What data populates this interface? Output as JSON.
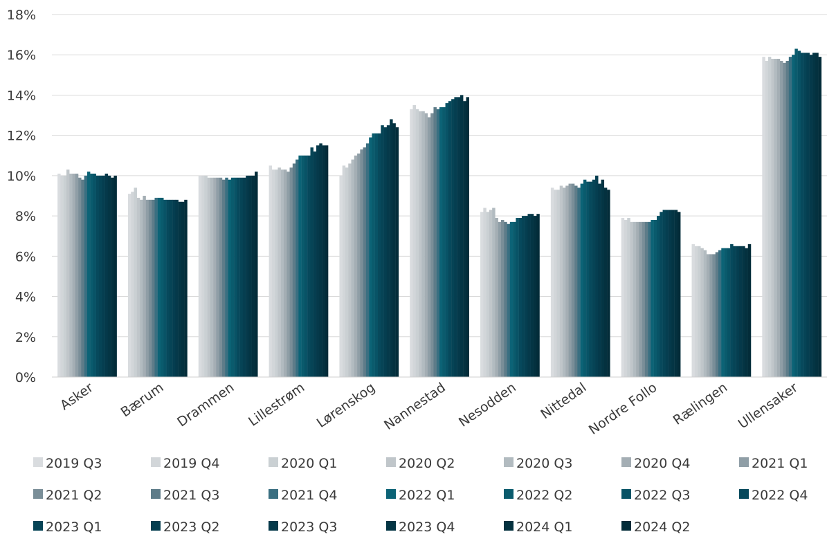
{
  "chart_data": {
    "type": "bar",
    "title": "",
    "xlabel": "",
    "ylabel": "",
    "ylim": [
      0,
      18
    ],
    "yticks": [
      "0%",
      "2%",
      "4%",
      "6%",
      "8%",
      "10%",
      "12%",
      "14%",
      "16%",
      "18%"
    ],
    "y_tick_values": [
      0,
      2,
      4,
      6,
      8,
      10,
      12,
      14,
      16,
      18
    ],
    "grid": true,
    "legend_position": "bottom",
    "categories": [
      "Asker",
      "Bærum",
      "Drammen",
      "Lillestrøm",
      "Lørenskog",
      "Nannestad",
      "Nesodden",
      "Nittedal",
      "Nordre Follo",
      "Rælingen",
      "Ullensaker"
    ],
    "series": [
      {
        "name": "2019 Q3",
        "color": "#d9dcdf",
        "values": [
          10.1,
          9.1,
          10.0,
          10.5,
          10.0,
          13.3,
          8.2,
          9.4,
          7.9,
          6.6,
          15.9
        ]
      },
      {
        "name": "2019 Q4",
        "color": "#d2d6d9",
        "values": [
          10.0,
          9.2,
          10.0,
          10.3,
          10.5,
          13.5,
          8.4,
          9.3,
          7.8,
          6.5,
          15.7
        ]
      },
      {
        "name": "2020 Q1",
        "color": "#cad0d3",
        "values": [
          10.0,
          9.4,
          10.0,
          10.3,
          10.4,
          13.3,
          8.2,
          9.3,
          7.9,
          6.5,
          15.9
        ]
      },
      {
        "name": "2020 Q2",
        "color": "#c0c6ca",
        "values": [
          10.3,
          8.9,
          9.9,
          10.4,
          10.6,
          13.2,
          8.3,
          9.5,
          7.7,
          6.4,
          15.8
        ]
      },
      {
        "name": "2020 Q3",
        "color": "#b2bbc0",
        "values": [
          10.1,
          8.8,
          9.9,
          10.3,
          10.8,
          13.2,
          8.4,
          9.4,
          7.7,
          6.3,
          15.8
        ]
      },
      {
        "name": "2020 Q4",
        "color": "#a4aeb4",
        "values": [
          10.1,
          9.0,
          9.9,
          10.3,
          11.0,
          13.1,
          7.9,
          9.5,
          7.7,
          6.1,
          15.8
        ]
      },
      {
        "name": "2021 Q1",
        "color": "#8f9ea6",
        "values": [
          10.1,
          8.8,
          9.9,
          10.2,
          11.1,
          12.9,
          7.7,
          9.6,
          7.7,
          6.1,
          15.7
        ]
      },
      {
        "name": "2021 Q2",
        "color": "#7a8e98",
        "values": [
          9.9,
          8.8,
          9.9,
          10.4,
          11.3,
          13.1,
          7.8,
          9.6,
          7.7,
          6.1,
          15.6
        ]
      },
      {
        "name": "2021 Q3",
        "color": "#5e7c89",
        "values": [
          9.8,
          8.8,
          9.8,
          10.6,
          11.4,
          13.4,
          7.7,
          9.5,
          7.7,
          6.2,
          15.7
        ]
      },
      {
        "name": "2021 Q4",
        "color": "#3a6f81",
        "values": [
          10.0,
          8.9,
          9.9,
          10.8,
          11.6,
          13.3,
          7.6,
          9.4,
          7.7,
          6.3,
          15.9
        ]
      },
      {
        "name": "2022 Q1",
        "color": "#0c6376",
        "values": [
          10.2,
          8.9,
          9.8,
          11.0,
          11.9,
          13.4,
          7.7,
          9.6,
          7.8,
          6.4,
          16.0
        ]
      },
      {
        "name": "2022 Q2",
        "color": "#0a5b6d",
        "values": [
          10.1,
          8.9,
          9.9,
          11.0,
          12.1,
          13.4,
          7.7,
          9.8,
          7.8,
          6.4,
          16.3
        ]
      },
      {
        "name": "2022 Q3",
        "color": "#085366",
        "values": [
          10.1,
          8.8,
          9.9,
          11.0,
          12.1,
          13.6,
          7.9,
          9.7,
          8.0,
          6.4,
          16.2
        ]
      },
      {
        "name": "2022 Q4",
        "color": "#07495c",
        "values": [
          10.0,
          8.8,
          9.9,
          11.0,
          12.1,
          13.7,
          7.9,
          9.7,
          8.2,
          6.6,
          16.1
        ]
      },
      {
        "name": "2023 Q1",
        "color": "#064456",
        "values": [
          10.0,
          8.8,
          9.9,
          11.4,
          12.5,
          13.8,
          8.0,
          9.8,
          8.3,
          6.5,
          16.1
        ]
      },
      {
        "name": "2023 Q2",
        "color": "#053e50",
        "values": [
          10.0,
          8.8,
          9.9,
          11.2,
          12.4,
          13.9,
          8.0,
          10.0,
          8.3,
          6.5,
          16.1
        ]
      },
      {
        "name": "2023 Q3",
        "color": "#05394a",
        "values": [
          10.1,
          8.8,
          10.0,
          11.5,
          12.5,
          13.9,
          8.1,
          9.6,
          8.3,
          6.5,
          16.0
        ]
      },
      {
        "name": "2023 Q4",
        "color": "#043544",
        "values": [
          10.0,
          8.7,
          10.0,
          11.6,
          12.8,
          14.0,
          8.1,
          9.8,
          8.3,
          6.5,
          16.1
        ]
      },
      {
        "name": "2024 Q1",
        "color": "#04313f",
        "values": [
          9.9,
          8.7,
          10.0,
          11.5,
          12.6,
          13.7,
          8.0,
          9.4,
          8.3,
          6.4,
          16.1
        ]
      },
      {
        "name": "2024 Q2",
        "color": "#032c39",
        "values": [
          10.0,
          8.8,
          10.2,
          11.5,
          12.4,
          13.9,
          8.1,
          9.3,
          8.2,
          6.6,
          15.9
        ]
      }
    ]
  }
}
